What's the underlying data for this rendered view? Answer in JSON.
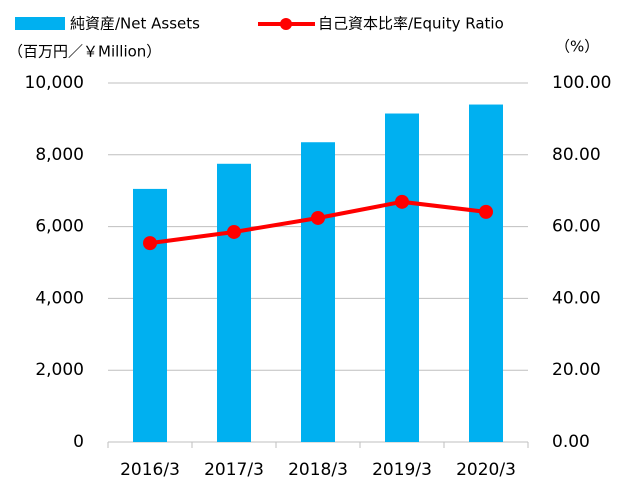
{
  "chart_data": {
    "type": "bar_line",
    "y_label": "（百万円／￥Million）",
    "y2_label": "（%）",
    "categories": [
      "2016/3",
      "2017/3",
      "2018/3",
      "2019/3",
      "2020/3"
    ],
    "series": [
      {
        "name": "純資産/Net Assets",
        "color": "#00b0f0",
        "type": "bar",
        "values": [
          7050,
          7750,
          8350,
          9150,
          9400
        ]
      },
      {
        "name": "自己資本比率/Equity Ratio",
        "color": "#ff0000",
        "type": "line",
        "axis": "y2",
        "values": [
          55.4,
          58.5,
          62.4,
          66.9,
          64.1
        ]
      }
    ],
    "ylim": [
      0,
      10000
    ],
    "yticks": [
      0,
      {
        "value": 2000,
        "label": "2,000"
      },
      {
        "value": 4000,
        "label": "4,000"
      },
      {
        "value": 6000,
        "label": "6,000"
      },
      {
        "value": 8000,
        "label": "8,000"
      },
      {
        "value": 10000,
        "label": "10,000"
      }
    ],
    "y2lim": [
      0,
      100
    ],
    "y2ticks": [
      {
        "value": 0,
        "label": "0.00"
      },
      {
        "value": 20,
        "label": "20.00"
      },
      {
        "value": 40,
        "label": "40.00"
      },
      {
        "value": 60,
        "label": "60.00"
      },
      {
        "value": 80,
        "label": "80.00"
      },
      {
        "value": 100,
        "label": "100.00"
      }
    ],
    "grid": true,
    "legend": "top"
  }
}
